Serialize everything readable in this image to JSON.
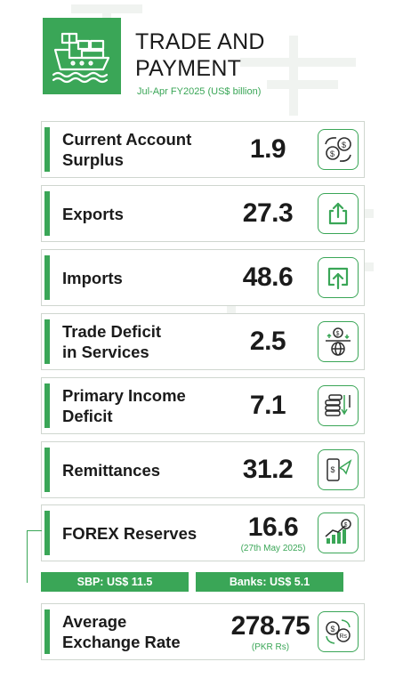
{
  "header": {
    "title_line1": "TRADE AND",
    "title_line2": "PAYMENT",
    "subtitle": "Jul-Apr FY2025 (US$ billion)"
  },
  "cards": [
    {
      "label_line1": "Current Account",
      "label_line2": "Surplus",
      "value": "1.9",
      "icon": "dollar-exchange-icon"
    },
    {
      "label_line1": "Exports",
      "label_line2": "",
      "value": "27.3",
      "icon": "upload-icon"
    },
    {
      "label_line1": "Imports",
      "label_line2": "",
      "value": "48.6",
      "icon": "import-icon"
    },
    {
      "label_line1": "Trade Deficit",
      "label_line2": "in Services",
      "value": "2.5",
      "icon": "globe-balance-icon"
    },
    {
      "label_line1": "Primary Income",
      "label_line2": "Deficit",
      "value": "7.1",
      "icon": "coins-decline-icon"
    },
    {
      "label_line1": "Remittances",
      "label_line2": "",
      "value": "31.2",
      "icon": "mobile-transfer-icon"
    },
    {
      "label_line1": "FOREX Reserves",
      "label_line2": "",
      "value": "16.6",
      "note": "(27th May 2025)",
      "icon": "growth-chart-icon"
    },
    {
      "label_line1": "Average",
      "label_line2": "Exchange Rate",
      "value": "278.75",
      "note": "(PKR Rs)",
      "icon": "currency-exchange-icon"
    }
  ],
  "forex_split": {
    "sbp": "SBP: US$ 11.5",
    "banks": "Banks: US$ 5.1"
  },
  "colors": {
    "accent": "#3aa657",
    "text": "#1b1b1b",
    "border": "#cfd6cf"
  }
}
